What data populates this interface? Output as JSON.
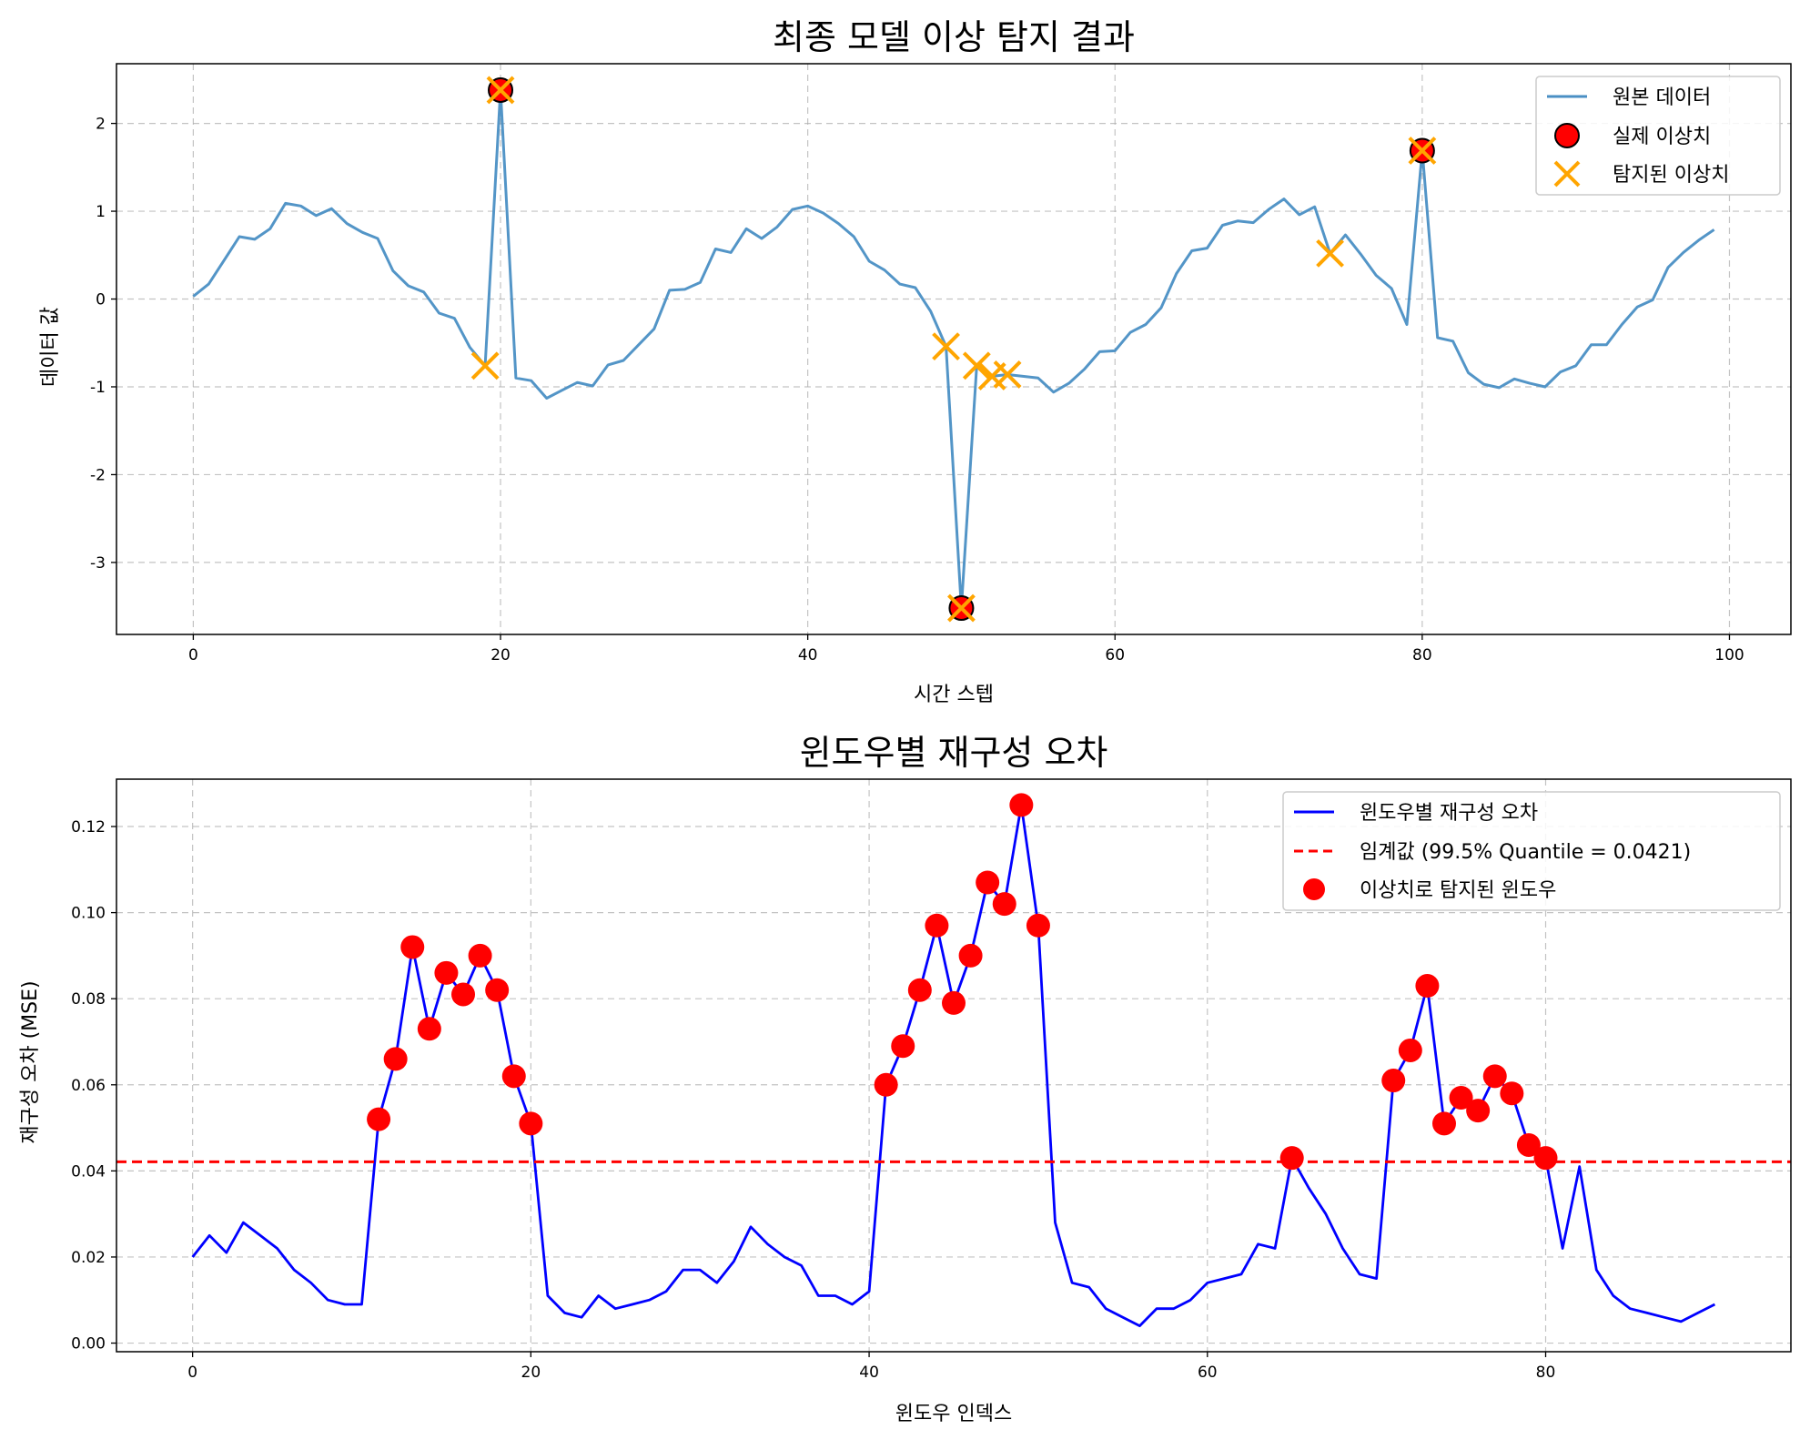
{
  "chart_data": [
    {
      "type": "line",
      "title": "최종 모델 이상 탐지 결과",
      "xlabel": "시간 스텝",
      "ylabel": "데이터 값",
      "xlim": [
        -5,
        104
      ],
      "ylim": [
        -3.82,
        2.68
      ],
      "xticks": [
        0,
        20,
        40,
        60,
        80,
        100
      ],
      "yticks": [
        2,
        1,
        0,
        -1,
        -2,
        -3
      ],
      "grid": true,
      "legend_position": "top-right",
      "colors": {
        "line": "#4a8fc4",
        "true_anomaly": "#ff0000",
        "detected": "#ffa500"
      },
      "series": [
        {
          "name": "원본 데이터",
          "kind": "line",
          "x": [
            0,
            1,
            2,
            3,
            4,
            5,
            6,
            7,
            8,
            9,
            10,
            11,
            12,
            13,
            14,
            15,
            16,
            17,
            18,
            19,
            20,
            21,
            22,
            23,
            24,
            25,
            26,
            27,
            28,
            29,
            30,
            31,
            32,
            33,
            34,
            35,
            36,
            37,
            38,
            39,
            40,
            41,
            42,
            43,
            44,
            45,
            46,
            47,
            48,
            49,
            50,
            51,
            52,
            53,
            54,
            55,
            56,
            57,
            58,
            59,
            60,
            61,
            62,
            63,
            64,
            65,
            66,
            67,
            68,
            69,
            70,
            71,
            72,
            73,
            74,
            75,
            76,
            77,
            78,
            79,
            80,
            81,
            82,
            83,
            84,
            85,
            86,
            87,
            88,
            89,
            90,
            91,
            92,
            93,
            94,
            95,
            96,
            97,
            98,
            99
          ],
          "y": [
            0.03,
            0.17,
            0.44,
            0.71,
            0.68,
            0.8,
            1.09,
            1.06,
            0.95,
            1.03,
            0.86,
            0.76,
            0.69,
            0.32,
            0.15,
            0.08,
            -0.16,
            -0.22,
            -0.55,
            -0.76,
            2.38,
            -0.9,
            -0.93,
            -1.13,
            -1.04,
            -0.95,
            -0.99,
            -0.75,
            -0.7,
            -0.52,
            -0.34,
            0.1,
            0.11,
            0.19,
            0.57,
            0.53,
            0.8,
            0.69,
            0.82,
            1.02,
            1.06,
            0.98,
            0.86,
            0.71,
            0.43,
            0.33,
            0.17,
            0.13,
            -0.14,
            -0.54,
            -3.52,
            -0.76,
            -0.88,
            -0.86,
            -0.88,
            -0.9,
            -1.06,
            -0.96,
            -0.8,
            -0.6,
            -0.59,
            -0.38,
            -0.29,
            -0.1,
            0.29,
            0.55,
            0.58,
            0.84,
            0.89,
            0.87,
            1.02,
            1.14,
            0.96,
            1.05,
            0.52,
            0.73,
            0.51,
            0.27,
            0.12,
            -0.29,
            1.69,
            -0.44,
            -0.48,
            -0.84,
            -0.97,
            -1.01,
            -0.91,
            -0.96,
            -1.0,
            -0.83,
            -0.76,
            -0.52,
            -0.52,
            -0.29,
            -0.09,
            -0.01,
            0.36,
            0.53,
            0.67,
            0.79
          ]
        },
        {
          "name": "실제 이상치",
          "kind": "scatter",
          "x": [
            20,
            50,
            80
          ],
          "y": [
            2.38,
            -3.52,
            1.69
          ]
        },
        {
          "name": "탐지된 이상치",
          "kind": "scatter",
          "x": [
            19,
            20,
            49,
            50,
            51,
            52,
            53,
            74,
            80
          ],
          "y": [
            -0.76,
            2.38,
            -0.54,
            -3.52,
            -0.76,
            -0.88,
            -0.86,
            0.52,
            1.69
          ]
        }
      ]
    },
    {
      "type": "line",
      "title": "윈도우별 재구성 오차",
      "xlabel": "윈도우 인덱스",
      "ylabel": "재구성 오차 (MSE)",
      "xlim": [
        -4.5,
        94.5
      ],
      "ylim": [
        -0.002,
        0.131
      ],
      "xticks": [
        0,
        20,
        40,
        60,
        80
      ],
      "yticks": [
        0.0,
        0.02,
        0.04,
        0.06,
        0.08,
        0.1,
        0.12
      ],
      "ytick_labels": [
        "0.00",
        "0.02",
        "0.04",
        "0.06",
        "0.08",
        "0.10",
        "0.12"
      ],
      "grid": true,
      "legend_position": "top-right",
      "threshold": 0.0421,
      "colors": {
        "line": "#0000ff",
        "threshold": "#ff0000",
        "detected": "#ff0000"
      },
      "series": [
        {
          "name": "윈도우별 재구성 오차",
          "kind": "line",
          "x": [
            0,
            1,
            2,
            3,
            4,
            5,
            6,
            7,
            8,
            9,
            10,
            11,
            12,
            13,
            14,
            15,
            16,
            17,
            18,
            19,
            20,
            21,
            22,
            23,
            24,
            25,
            26,
            27,
            28,
            29,
            30,
            31,
            32,
            33,
            34,
            35,
            36,
            37,
            38,
            39,
            40,
            41,
            42,
            43,
            44,
            45,
            46,
            47,
            48,
            49,
            50,
            51,
            52,
            53,
            54,
            55,
            56,
            57,
            58,
            59,
            60,
            61,
            62,
            63,
            64,
            65,
            66,
            67,
            68,
            69,
            70,
            71,
            72,
            73,
            74,
            75,
            76,
            77,
            78,
            79,
            80,
            81,
            82,
            83,
            84,
            85,
            86,
            87,
            88,
            89,
            90
          ],
          "y": [
            0.02,
            0.025,
            0.021,
            0.028,
            0.025,
            0.022,
            0.017,
            0.014,
            0.01,
            0.009,
            0.009,
            0.052,
            0.066,
            0.092,
            0.073,
            0.086,
            0.081,
            0.09,
            0.082,
            0.062,
            0.051,
            0.011,
            0.007,
            0.006,
            0.011,
            0.008,
            0.009,
            0.01,
            0.012,
            0.017,
            0.017,
            0.014,
            0.019,
            0.027,
            0.023,
            0.02,
            0.018,
            0.011,
            0.011,
            0.009,
            0.012,
            0.06,
            0.069,
            0.082,
            0.097,
            0.079,
            0.09,
            0.107,
            0.102,
            0.125,
            0.097,
            0.028,
            0.014,
            0.013,
            0.008,
            0.006,
            0.004,
            0.008,
            0.008,
            0.01,
            0.014,
            0.015,
            0.016,
            0.023,
            0.022,
            0.043,
            0.036,
            0.03,
            0.022,
            0.016,
            0.015,
            0.061,
            0.068,
            0.083,
            0.051,
            0.057,
            0.054,
            0.062,
            0.058,
            0.046,
            0.043,
            0.022,
            0.041,
            0.017,
            0.011,
            0.008,
            0.007,
            0.006,
            0.005,
            0.007,
            0.009
          ]
        },
        {
          "name": "임계값 (99.5% Quantile = 0.0421)",
          "kind": "hline",
          "y": 0.0421
        },
        {
          "name": "이상치로 탐지된 윈도우",
          "kind": "scatter",
          "x": [
            11,
            12,
            13,
            14,
            15,
            16,
            17,
            18,
            19,
            20,
            41,
            42,
            43,
            44,
            45,
            46,
            47,
            48,
            49,
            50,
            65,
            71,
            72,
            73,
            74,
            75,
            76,
            77,
            78,
            79,
            80
          ],
          "y": [
            0.052,
            0.066,
            0.092,
            0.073,
            0.086,
            0.081,
            0.09,
            0.082,
            0.062,
            0.051,
            0.06,
            0.069,
            0.082,
            0.097,
            0.079,
            0.09,
            0.107,
            0.102,
            0.125,
            0.097,
            0.043,
            0.061,
            0.068,
            0.083,
            0.051,
            0.057,
            0.054,
            0.062,
            0.058,
            0.046,
            0.043
          ]
        }
      ]
    }
  ]
}
